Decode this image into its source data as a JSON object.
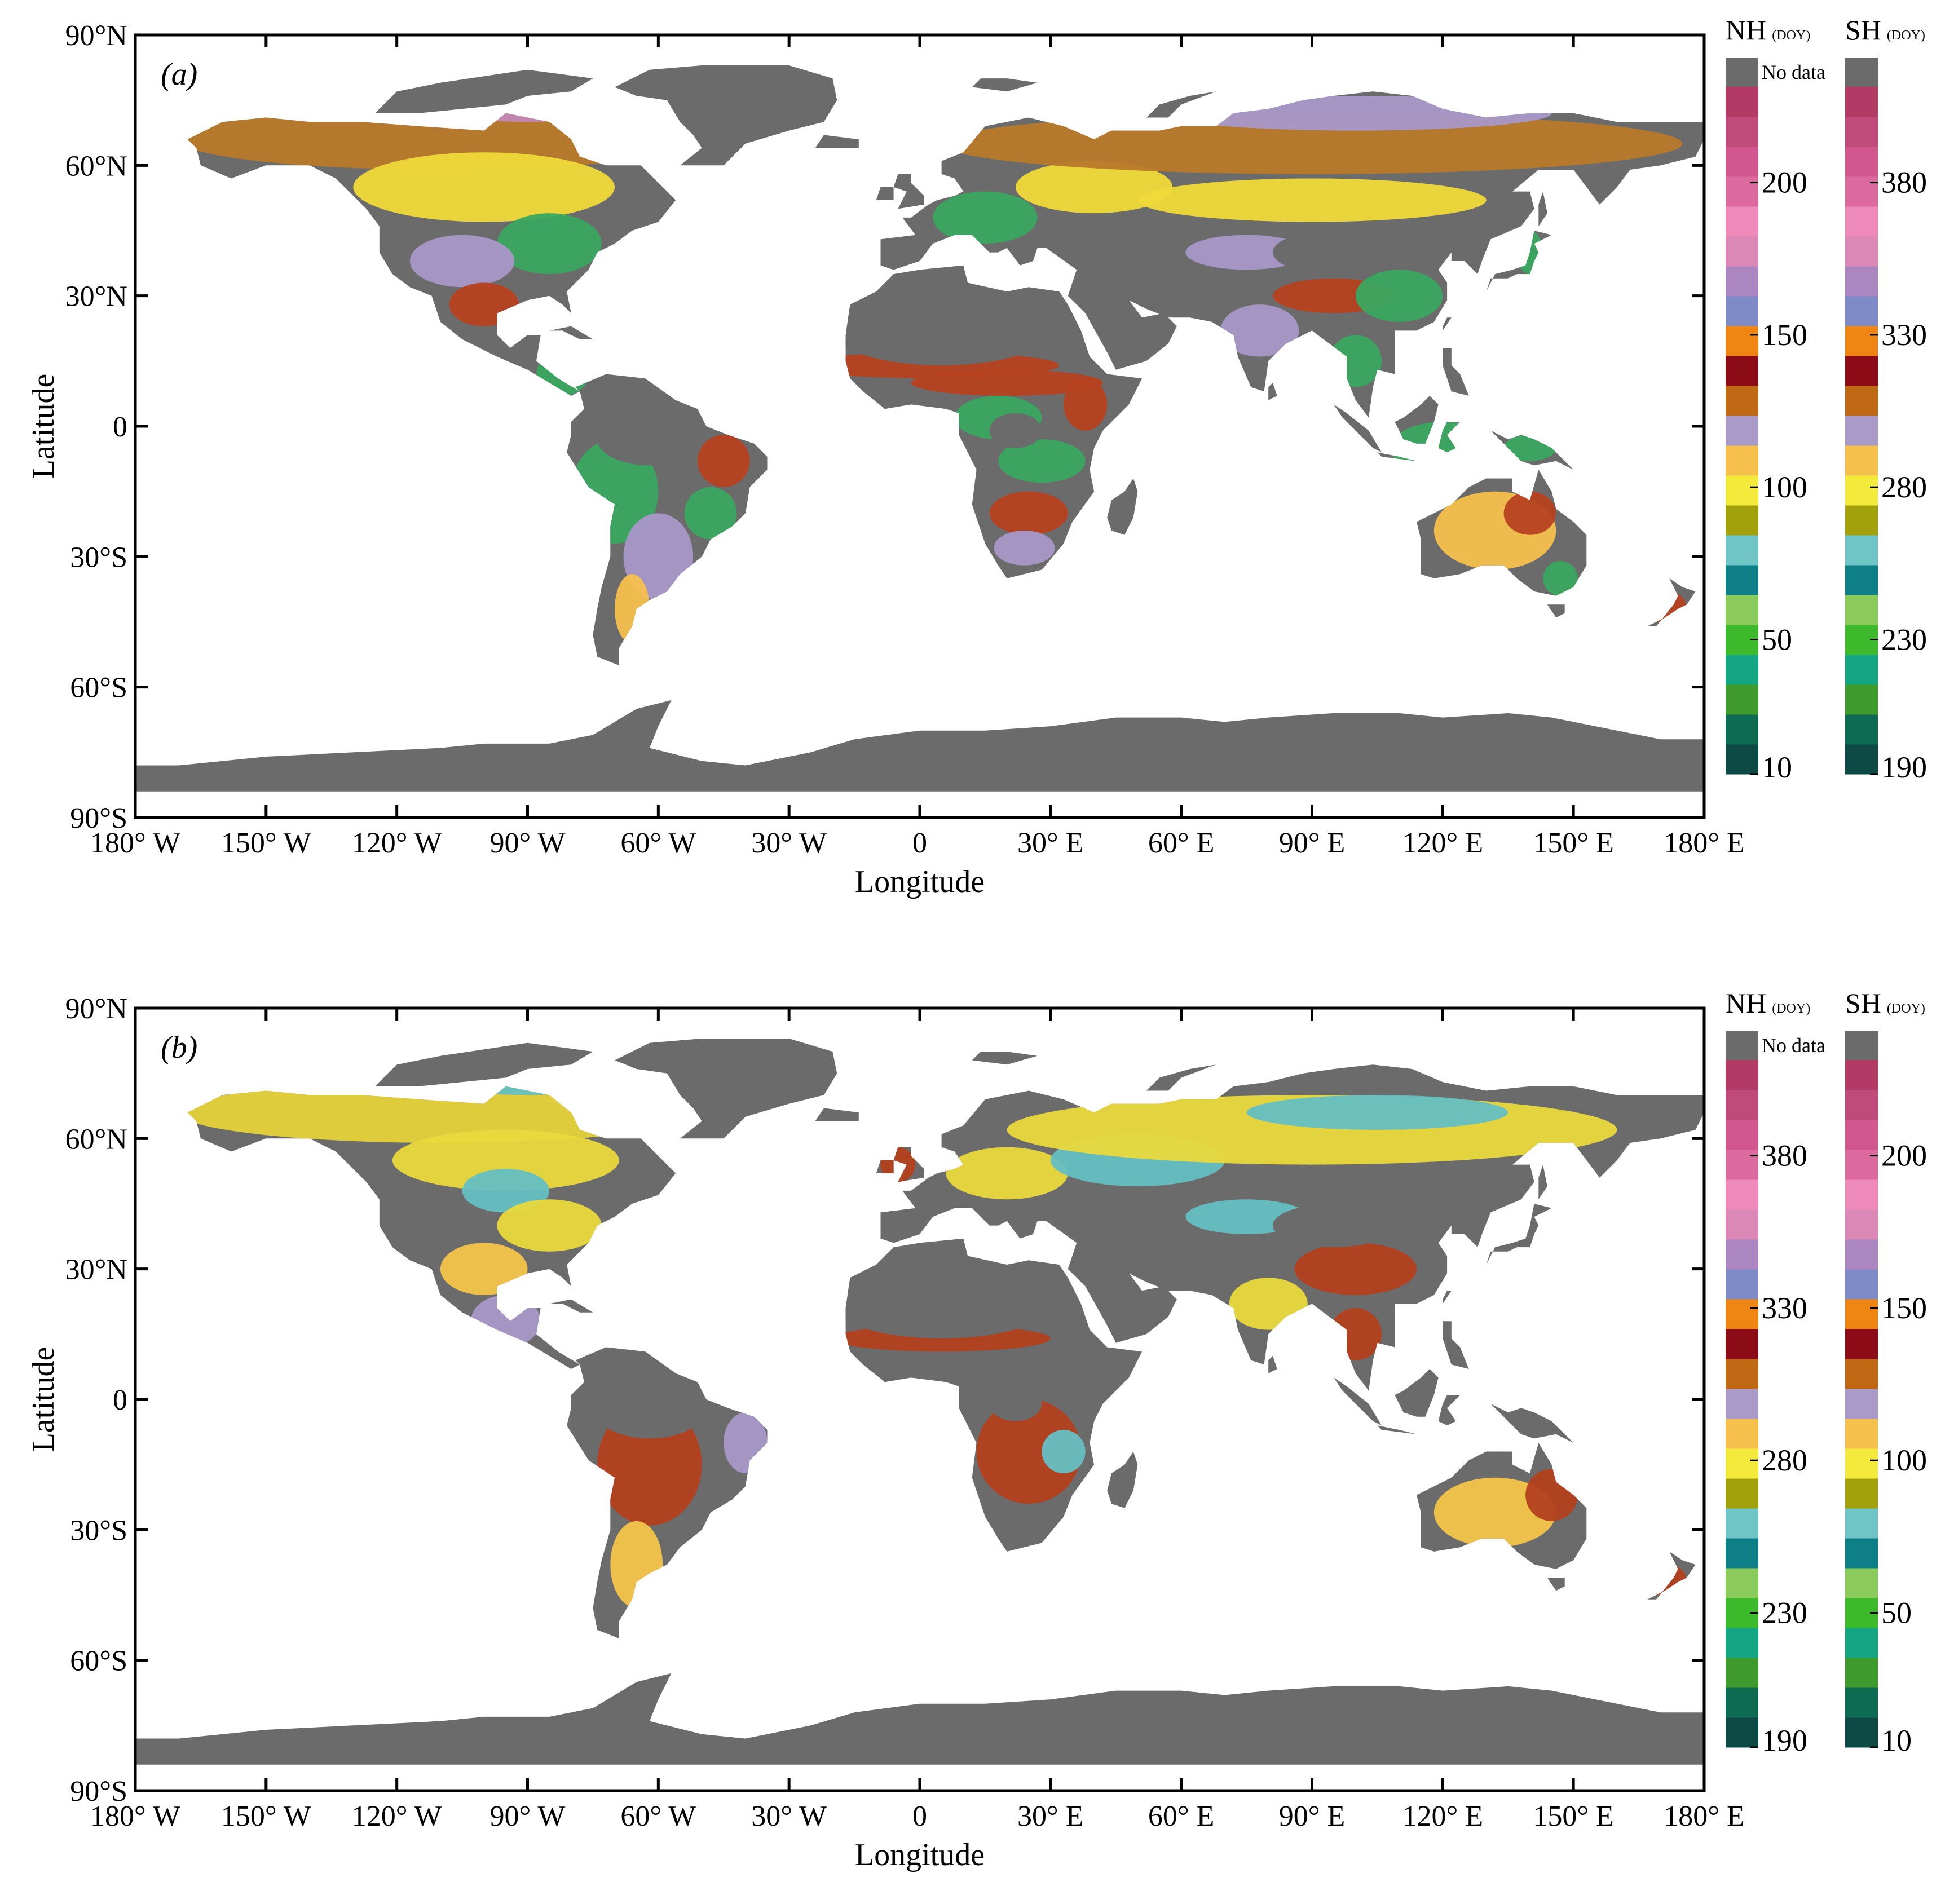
{
  "figure": {
    "panels": [
      {
        "label_open": "(",
        "label_letter": "a",
        "label_close": ")",
        "colorbars": [
          {
            "title": "NH",
            "unit": "(DOY)",
            "ticks": [
              "10",
              "50",
              "100",
              "150",
              "200"
            ]
          },
          {
            "title": "SH",
            "unit": "(DOY)",
            "ticks": [
              "190",
              "230",
              "280",
              "330",
              "380"
            ]
          }
        ]
      },
      {
        "label_open": "(",
        "label_letter": "b",
        "label_close": ")",
        "colorbars": [
          {
            "title": "NH",
            "unit": "(DOY)",
            "ticks": [
              "190",
              "230",
              "280",
              "330",
              "380"
            ]
          },
          {
            "title": "SH",
            "unit": "(DOY)",
            "ticks": [
              "10",
              "50",
              "100",
              "150",
              "200"
            ]
          }
        ]
      }
    ],
    "no_data_label": "No data",
    "x_axis": {
      "title": "Longitude",
      "ticks": [
        {
          "v": -180,
          "t": "180° W"
        },
        {
          "v": -150,
          "t": "150° W"
        },
        {
          "v": -120,
          "t": "120° W"
        },
        {
          "v": -90,
          "t": "90° W"
        },
        {
          "v": -60,
          "t": "60° W"
        },
        {
          "v": -30,
          "t": "30° W"
        },
        {
          "v": 0,
          "t": "0"
        },
        {
          "v": 30,
          "t": "30° E"
        },
        {
          "v": 60,
          "t": "60° E"
        },
        {
          "v": 90,
          "t": "90° E"
        },
        {
          "v": 120,
          "t": "120° E"
        },
        {
          "v": 150,
          "t": "150° E"
        },
        {
          "v": 180,
          "t": "180° E"
        }
      ]
    },
    "y_axis": {
      "title": "Latitude",
      "ticks": [
        {
          "v": 90,
          "t": "90°N"
        },
        {
          "v": 60,
          "t": "60°N"
        },
        {
          "v": 30,
          "t": "30°N"
        },
        {
          "v": 0,
          "t": "0"
        },
        {
          "v": -30,
          "t": "30°S"
        },
        {
          "v": -60,
          "t": "60°S"
        },
        {
          "v": -90,
          "t": "90°S"
        }
      ]
    },
    "colors": {
      "no_data": "#6b6b6b",
      "scale": [
        "#0d4a45",
        "#0d6b52",
        "#3f9a2e",
        "#14a683",
        "#3cba2b",
        "#8bcb5c",
        "#0f7f87",
        "#6fc5c6",
        "#a2a10c",
        "#f4ea3c",
        "#f6c04d",
        "#aa9ac8",
        "#c06915",
        "#8b0b16",
        "#ef8512",
        "#7f8bc6",
        "#ab86c0",
        "#dc88b6",
        "#ee8ab9",
        "#dc6a9e",
        "#d2578e",
        "#c04a79",
        "#b23a64"
      ],
      "regions_a": {
        "boreal_north": "#b87a2a",
        "arctic": "#c387b8",
        "temperate": "#f0da3a",
        "tropics": "#3aa860",
        "sahel": "#b64120",
        "dry": "#f6c04d",
        "lilac": "#a998c8"
      },
      "regions_b": {
        "boreal_north": "#e6d23a",
        "arctic": "#65bfc3",
        "temperate": "#e9d93d",
        "tropics": "#b3401e",
        "sahel": "#b3401e",
        "dry": "#f3c54a",
        "lilac": "#a998c8"
      }
    }
  }
}
